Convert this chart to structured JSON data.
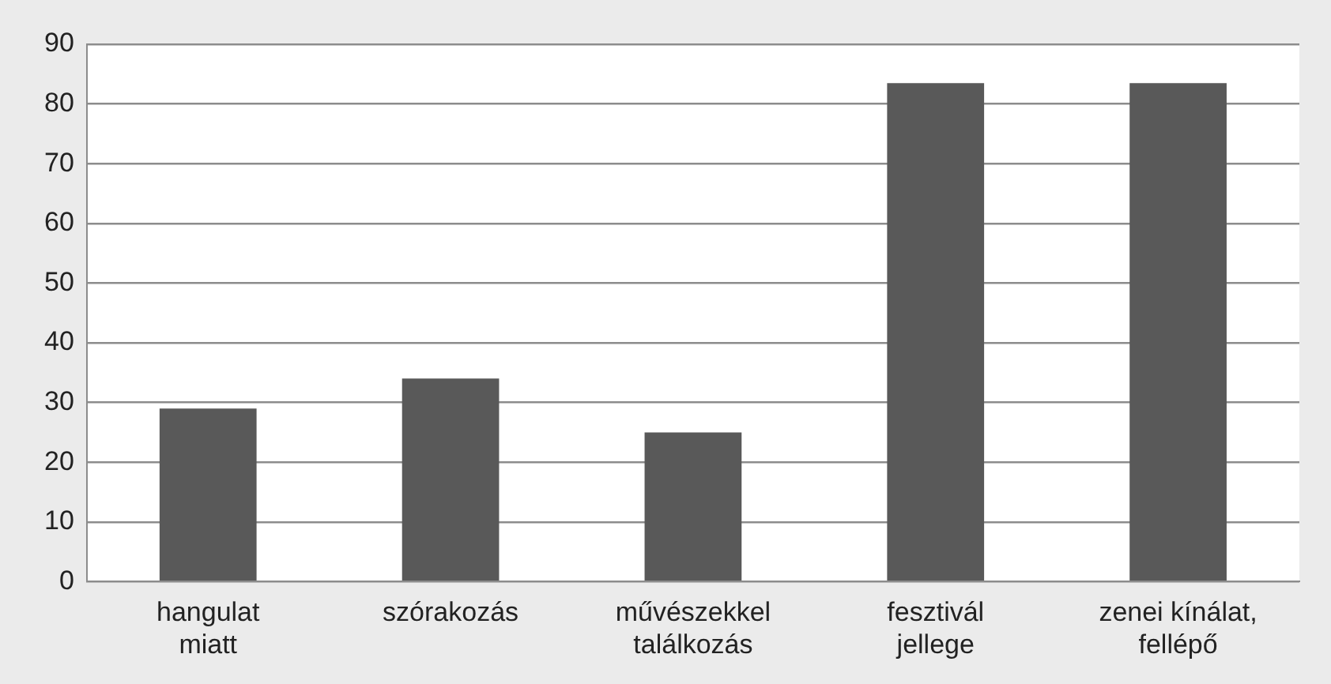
{
  "chart_data": {
    "type": "bar",
    "categories": [
      "hangulat miatt",
      "szórakozás",
      "művészekkel találkozás",
      "fesztivál jellege",
      "zenei kínálat, fellépő"
    ],
    "values": [
      29,
      34,
      25,
      83.5,
      83.5
    ],
    "color": "#595959",
    "ylim": [
      0,
      90
    ],
    "yticks": [
      0,
      10,
      20,
      30,
      40,
      50,
      60,
      70,
      80,
      90
    ],
    "grid": "y",
    "legend": false
  }
}
